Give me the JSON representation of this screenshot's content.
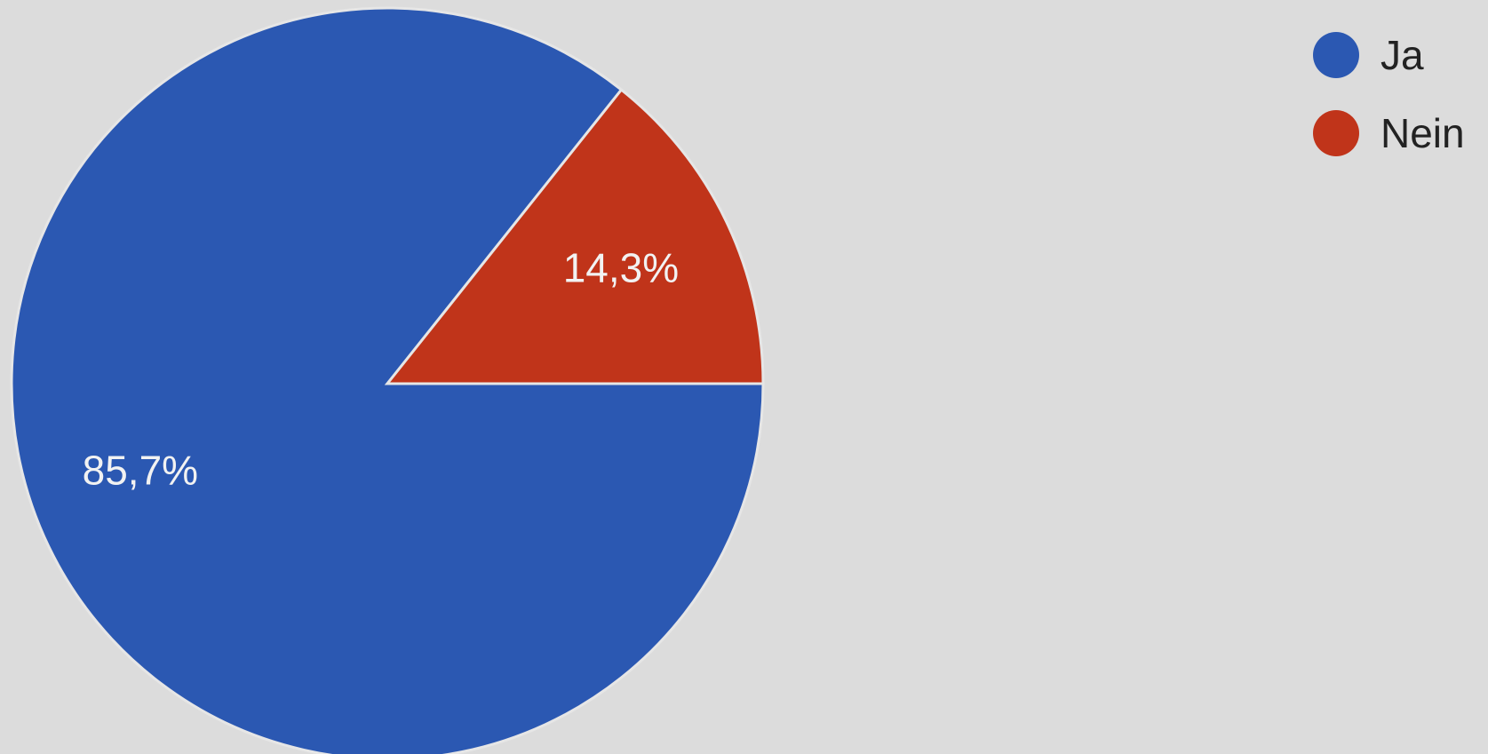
{
  "chart_data": {
    "type": "pie",
    "categories": [
      "Ja",
      "Nein"
    ],
    "values": [
      85.7,
      14.3
    ],
    "data_labels": [
      "85,7%",
      "14,3%"
    ],
    "colors": [
      "#2b58b2",
      "#c0341a"
    ],
    "legend": {
      "position": "top-right",
      "entries": [
        "Ja",
        "Nein"
      ]
    }
  }
}
